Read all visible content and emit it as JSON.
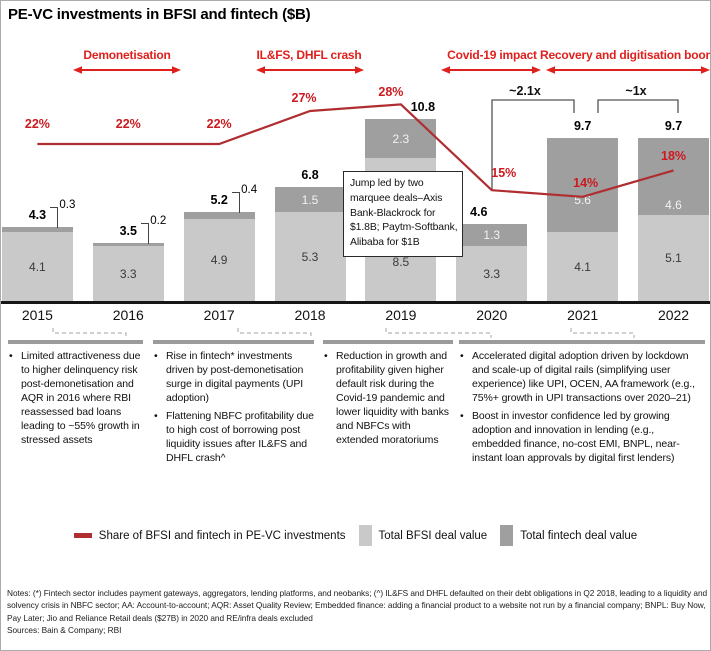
{
  "title": "PE-VC investments in BFSI and fintech ($B)",
  "phases": [
    {
      "label": "Demonetisation"
    },
    {
      "label": "IL&FS, DHFL crash"
    },
    {
      "label": "Covid-19 impact"
    },
    {
      "label": "Recovery and digitisation boom"
    }
  ],
  "multipliers": [
    {
      "label": "~2.1x"
    },
    {
      "label": "~1x"
    }
  ],
  "chart_data": {
    "type": "bar",
    "subtype": "stacked bars with share line overlay",
    "categories": [
      "2015",
      "2016",
      "2017",
      "2018",
      "2019",
      "2020",
      "2021",
      "2022"
    ],
    "series": [
      {
        "name": "Total BFSI deal value",
        "values": [
          4.1,
          3.3,
          4.9,
          5.3,
          8.5,
          3.3,
          4.1,
          5.1
        ]
      },
      {
        "name": "Total fintech deal value",
        "values": [
          0.3,
          0.2,
          0.4,
          1.5,
          2.3,
          1.3,
          5.6,
          4.6
        ]
      },
      {
        "name": "Share of BFSI and fintech in PE-VC investments",
        "unit": "%",
        "values": [
          22,
          22,
          22,
          27,
          28,
          15,
          14,
          18
        ]
      }
    ],
    "totals": [
      "4.3",
      "3.5",
      "5.2",
      "6.8",
      "10.8",
      "4.6",
      "9.7",
      "9.7"
    ],
    "title": "PE-VC investments in BFSI and fintech ($B)",
    "xlabel": "",
    "ylabel": "",
    "grid": false,
    "legend_position": "bottom"
  },
  "callout": {
    "text": "Jump led by two marquee deals–Axis Bank-Blackrock for $1.8B; Paytm-Softbank, Alibaba for $1B"
  },
  "insights": [
    {
      "bullets": [
        "Limited attractiveness due to higher delinquency risk post-demonetisation and AQR in 2016 where RBI reassessed bad loans leading to ~55% growth in stressed assets"
      ]
    },
    {
      "bullets": [
        "Rise in fintech* investments driven by post-demonetisation surge in digital payments (UPI adoption)",
        "Flattening NBFC profitability due to high cost of borrowing post liquidity issues after IL&FS and DHFL crash^"
      ]
    },
    {
      "bullets": [
        "Reduction in growth and profitability given higher default risk during the Covid-19 pandemic and lower liquidity with banks and NBFCs with extended moratoriums"
      ]
    },
    {
      "bullets": [
        "Accelerated digital adoption driven by lockdown and scale-up of digital rails (simplifying user experience) like UPI, OCEN, AA framework (e.g., 75%+ growth in UPI transactions over 2020–21)",
        "Boost in investor confidence led by growing adoption and innovation in lending (e.g., embedded finance, no-cost EMI, BNPL, near-instant loan approvals by digital first lenders)"
      ]
    }
  ],
  "legend": [
    {
      "label": "Share of BFSI and fintech in PE-VC investments"
    },
    {
      "label": "Total BFSI deal value"
    },
    {
      "label": "Total fintech deal value"
    }
  ],
  "notes": "Notes: (*) Fintech sector includes payment gateways, aggregators, lending platforms, and neobanks; (^) IL&FS and DHFL defaulted on their debt obligations in Q2 2018, leading to a liquidity and solvency crisis in NBFC sector; AA: Account-to-account; AQR: Asset Quality Review; Embedded finance: adding a financial product to a website not run by a financial company; BNPL: Buy Now, Pay Later; Jio and Reliance Retail deals ($27B) in 2020 and RE/infra deals excluded",
  "sources": "Sources: Bain & Company; RBI",
  "colors": {
    "bfsi_bar": "#c9c9c9",
    "fintech_bar": "#9f9f9f",
    "share_line": "#b02e31",
    "accent_red": "#e0201d",
    "pct_label_red": "#cb1a20"
  }
}
